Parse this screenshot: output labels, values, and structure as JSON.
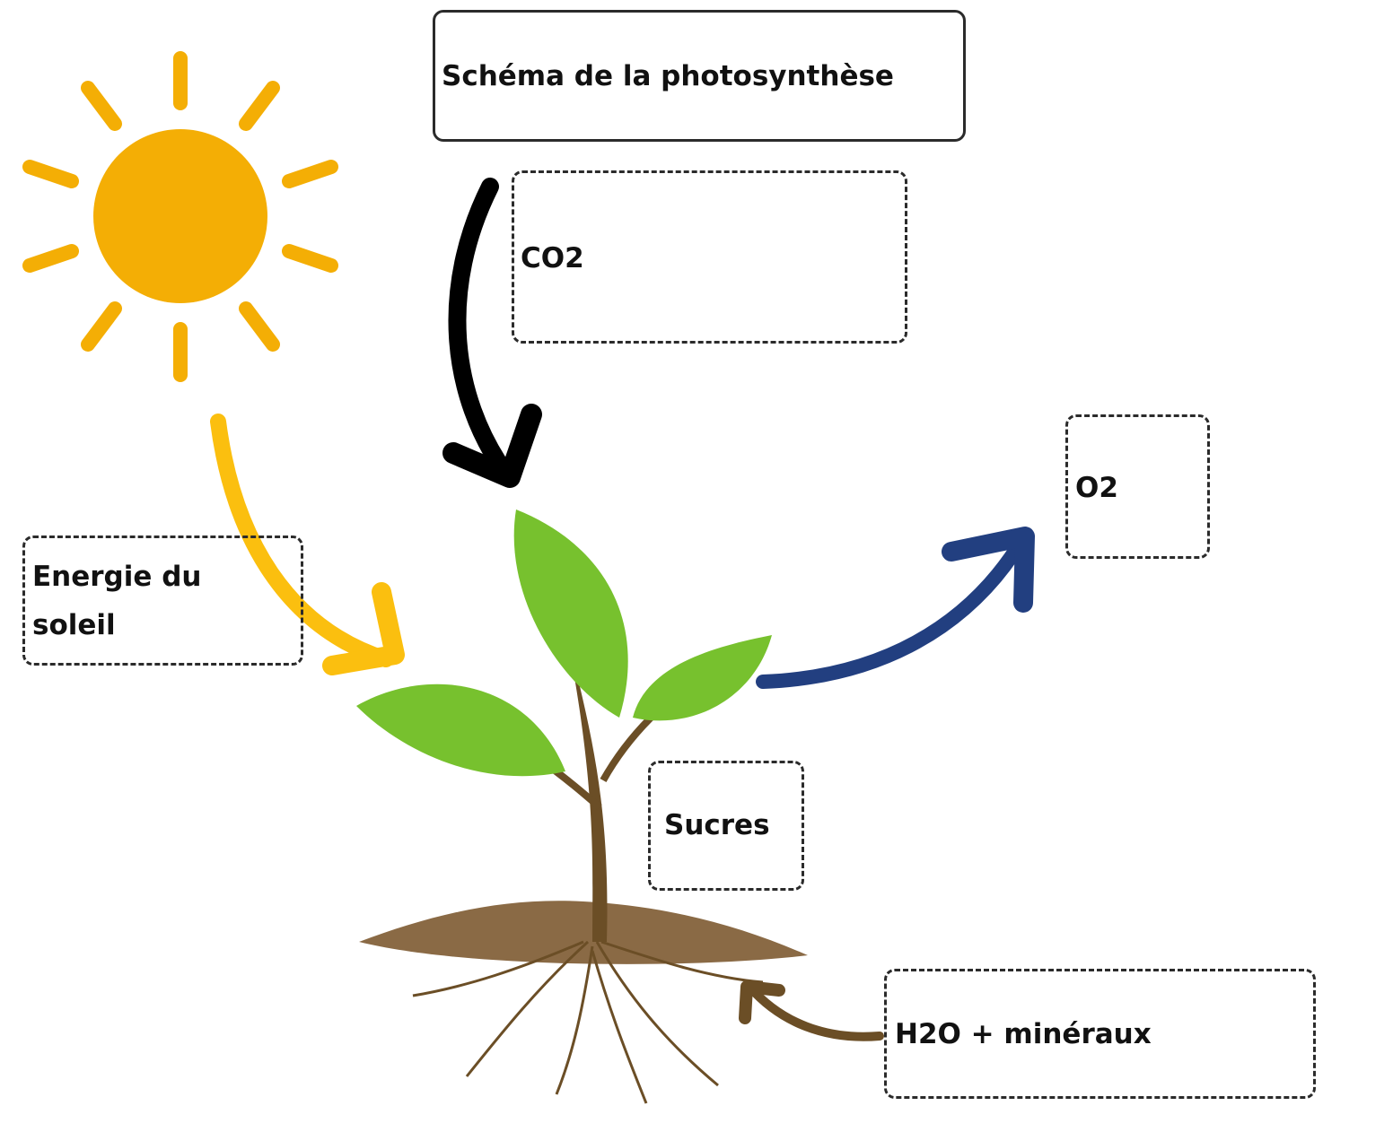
{
  "title": "Schéma de la photosynthèse",
  "labels": {
    "co2": "CO2",
    "o2": "O2",
    "energy": "Energie du soleil",
    "sugars": "Sucres",
    "water": "H2O + minéraux"
  }
}
